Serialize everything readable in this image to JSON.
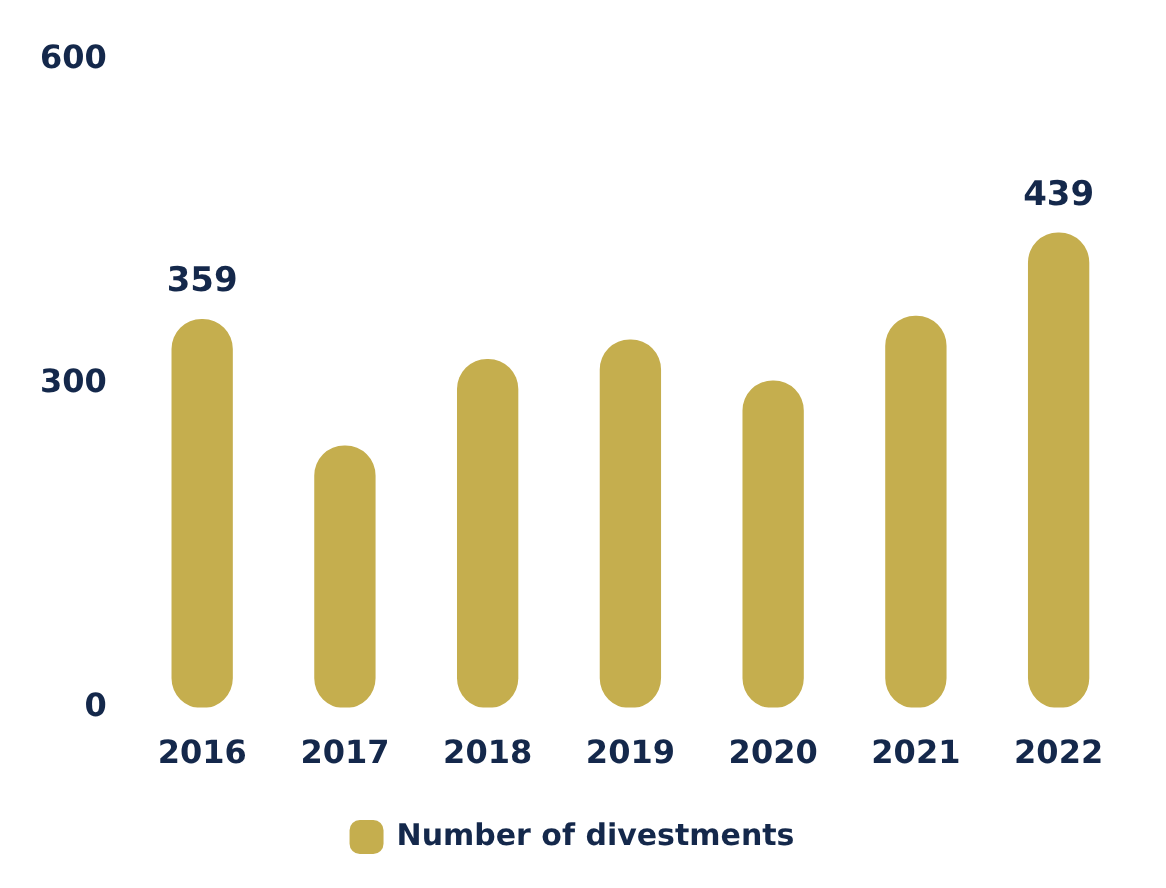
{
  "chart_data": {
    "type": "bar",
    "categories": [
      "2016",
      "2017",
      "2018",
      "2019",
      "2020",
      "2021",
      "2022"
    ],
    "series": [
      {
        "name": "Number of divestments",
        "color": "#c5ae4e",
        "values": [
          359,
          242,
          322,
          340,
          302,
          362,
          439
        ],
        "value_labels": [
          "359",
          null,
          null,
          null,
          null,
          null,
          "439"
        ]
      }
    ],
    "ylim": [
      0,
      600
    ],
    "yticks": [
      0,
      300,
      600
    ],
    "grid": false,
    "legend": "bottom"
  }
}
